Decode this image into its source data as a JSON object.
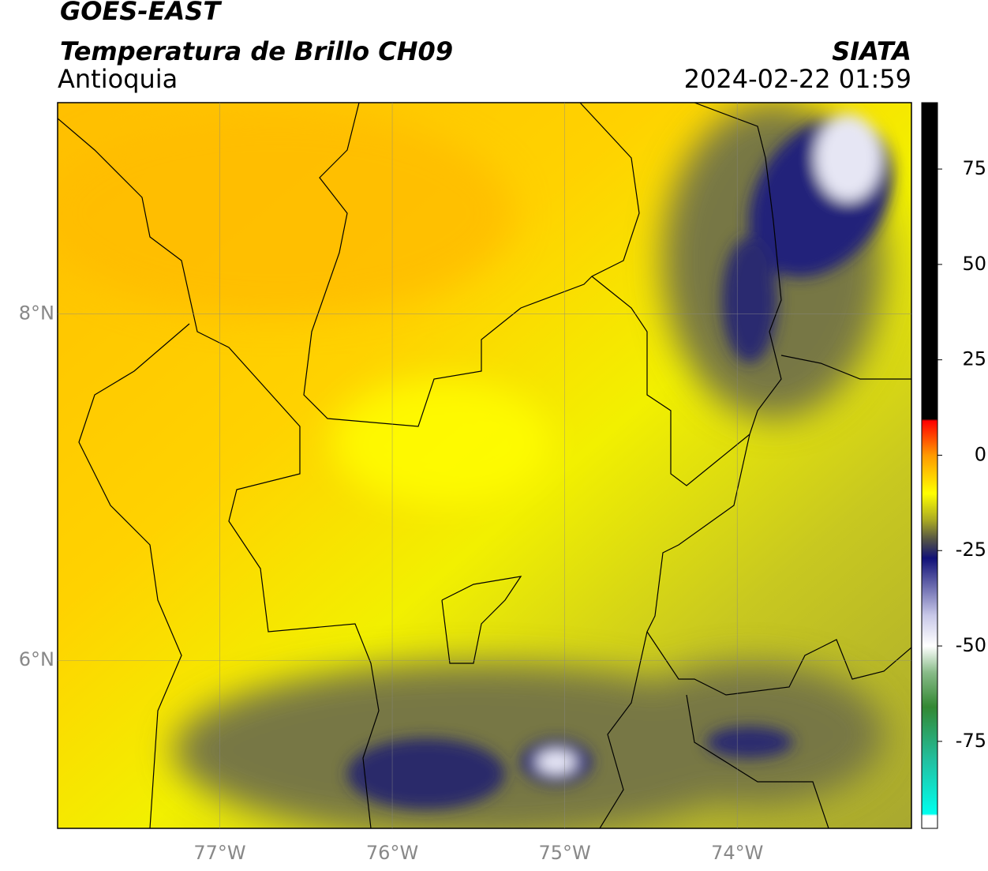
{
  "header": {
    "title": "GOES-EAST",
    "subtitle": "Temperatura de Brillo CH09",
    "region": "Antioquia",
    "source": "SIATA",
    "timestamp": "2024-02-22 01:59"
  },
  "map": {
    "xlim": [
      -77.94,
      -72.99
    ],
    "ylim": [
      5.03,
      9.22
    ],
    "xticks": [
      {
        "value": -77,
        "label": "77°W"
      },
      {
        "value": -76,
        "label": "76°W"
      },
      {
        "value": -75,
        "label": "75°W"
      },
      {
        "value": -74,
        "label": "74°W"
      }
    ],
    "yticks": [
      {
        "value": 6,
        "label": "6°N"
      },
      {
        "value": 8,
        "label": "8°N"
      }
    ],
    "grid": true
  },
  "colorbar": {
    "ylim": [
      -97.8,
      92.4
    ],
    "ticks": [
      75,
      50,
      25,
      0,
      -25,
      -50,
      -75
    ],
    "stops": [
      {
        "value": 92.4,
        "color": "#000000"
      },
      {
        "value": 9.5,
        "color": "#000000"
      },
      {
        "value": 9,
        "color": "#ff0000"
      },
      {
        "value": 0,
        "color": "#ff9900"
      },
      {
        "value": -10,
        "color": "#ffff00"
      },
      {
        "value": -17,
        "color": "#aaaa22"
      },
      {
        "value": -22,
        "color": "#555544"
      },
      {
        "value": -27,
        "color": "#111177"
      },
      {
        "value": -42,
        "color": "#c8c8e8"
      },
      {
        "value": -50,
        "color": "#ffffff"
      },
      {
        "value": -57,
        "color": "#88bb88"
      },
      {
        "value": -66,
        "color": "#338833"
      },
      {
        "value": -80,
        "color": "#22c0a0"
      },
      {
        "value": -94,
        "color": "#00ffee"
      },
      {
        "value": -94.5,
        "color": "#ffffff"
      },
      {
        "value": -97.8,
        "color": "#ffffff"
      }
    ]
  }
}
